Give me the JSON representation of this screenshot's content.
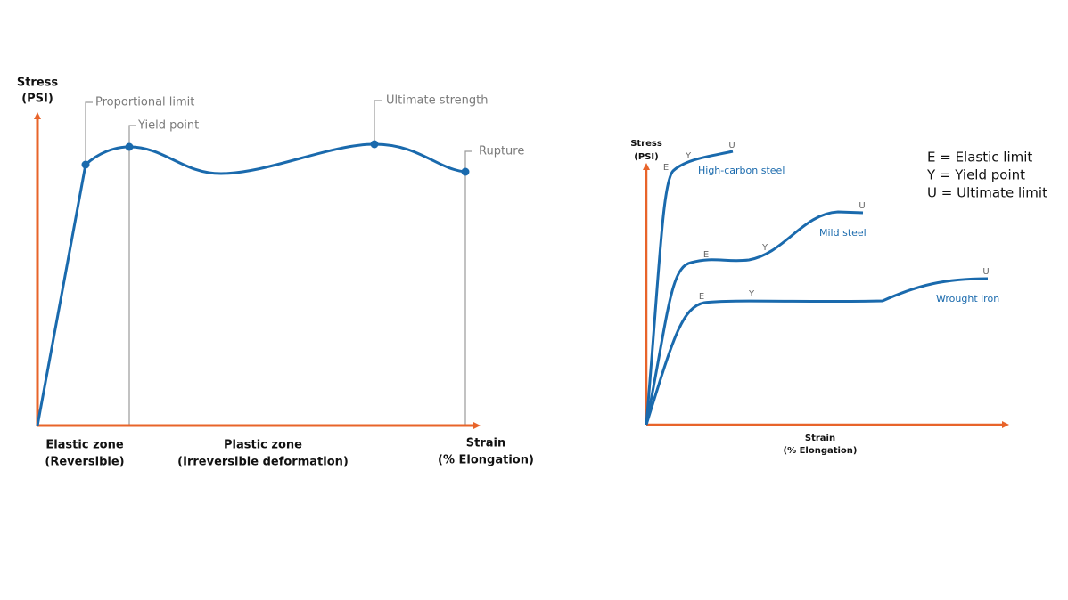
{
  "left": {
    "y_label": [
      "Stress",
      "(PSI)"
    ],
    "points": [
      "Proportional limit",
      "Yield point",
      "Ultimate strength",
      "Rupture"
    ],
    "zones": [
      [
        "Elastic zone",
        "(Reversible)"
      ],
      [
        "Plastic zone",
        "(Irreversible deformation)"
      ]
    ],
    "x_label": [
      "Strain",
      "(% Elongation)"
    ]
  },
  "right": {
    "y_label": [
      "Stress",
      "(PSI)"
    ],
    "x_label": [
      "Strain",
      "(% Elongation)"
    ],
    "curves": [
      {
        "name": "High-carbon steel",
        "markers": [
          "E",
          "Y",
          "U"
        ]
      },
      {
        "name": "Mild steel",
        "markers": [
          "E",
          "Y",
          "U"
        ]
      },
      {
        "name": "Wrought iron",
        "markers": [
          "E",
          "Y",
          "U"
        ]
      }
    ],
    "legend": [
      "E = Elastic limit",
      "Y = Yield point",
      "U = Ultimate limit"
    ]
  }
}
